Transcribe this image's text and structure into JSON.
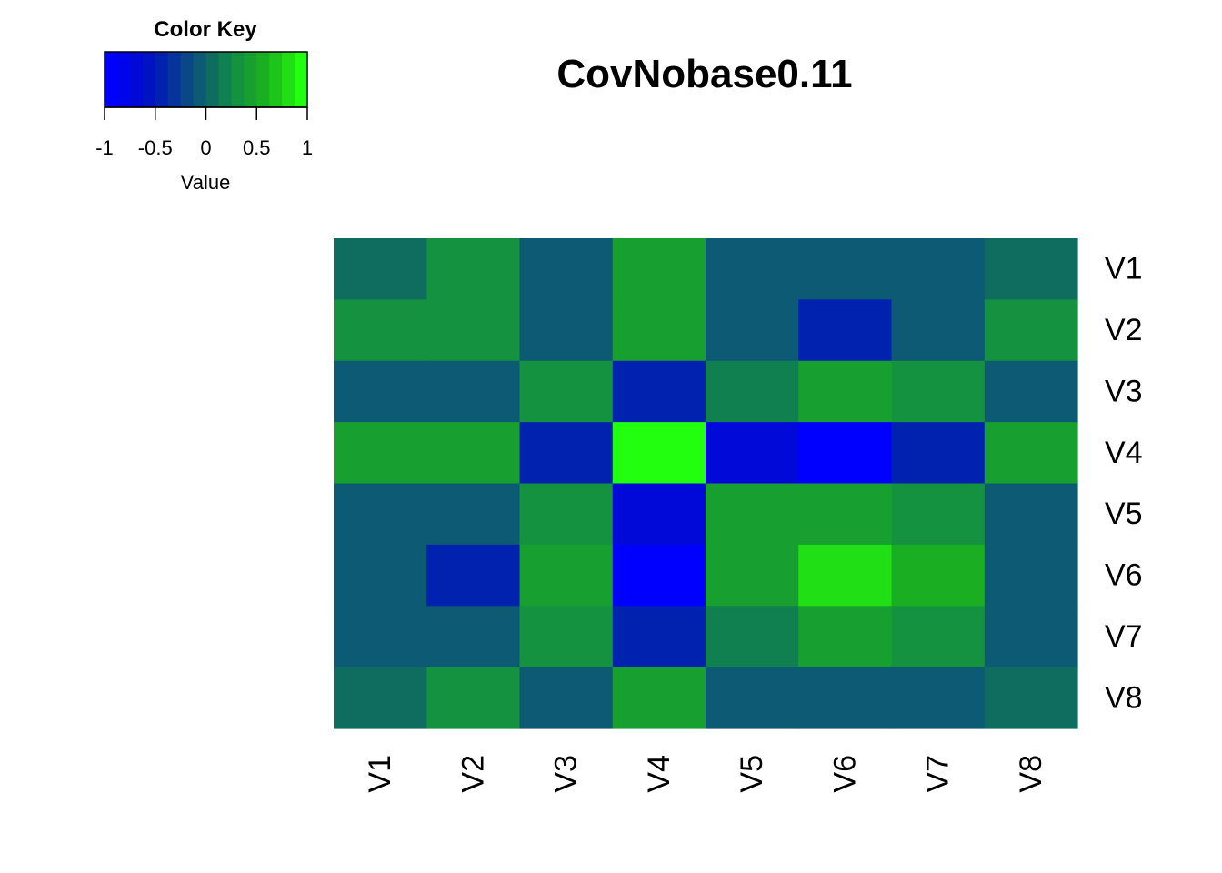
{
  "chart_data": {
    "type": "heatmap",
    "title": "CovNobase0.11",
    "rows": [
      "V1",
      "V2",
      "V3",
      "V4",
      "V5",
      "V6",
      "V7",
      "V8"
    ],
    "columns": [
      "V1",
      "V2",
      "V3",
      "V4",
      "V5",
      "V6",
      "V7",
      "V8"
    ],
    "values": [
      [
        0.1,
        0.3,
        -0.05,
        0.4,
        -0.05,
        -0.05,
        -0.05,
        0.1
      ],
      [
        0.3,
        0.3,
        -0.05,
        0.4,
        -0.05,
        -0.4,
        -0.05,
        0.3
      ],
      [
        -0.05,
        -0.05,
        0.3,
        -0.4,
        0.2,
        0.45,
        0.3,
        -0.05
      ],
      [
        0.4,
        0.4,
        -0.4,
        1.0,
        -0.75,
        -0.95,
        -0.4,
        0.4
      ],
      [
        -0.05,
        -0.05,
        0.3,
        -0.75,
        0.4,
        0.4,
        0.3,
        -0.05
      ],
      [
        -0.05,
        -0.4,
        0.45,
        -0.95,
        0.4,
        0.75,
        0.5,
        -0.05
      ],
      [
        -0.05,
        -0.05,
        0.3,
        -0.4,
        0.2,
        0.45,
        0.3,
        -0.05
      ],
      [
        0.1,
        0.3,
        -0.05,
        0.4,
        -0.05,
        -0.05,
        -0.05,
        0.1
      ]
    ],
    "color_key": {
      "title": "Color Key",
      "xlabel": "Value",
      "range": [
        -1,
        1
      ],
      "ticks": [
        "-1",
        "-0.5",
        "0",
        "0.5",
        "1"
      ],
      "colors": [
        "#0000ff",
        "#0004eb",
        "#0009d7",
        "#0013c3",
        "#0022af",
        "#07349b",
        "#0a4787",
        "#0c5a73",
        "#0e6d5f",
        "#108050",
        "#14923f",
        "#17a02f",
        "#1aaf22",
        "#1dc51a",
        "#20df14",
        "#22ff0f"
      ]
    }
  }
}
